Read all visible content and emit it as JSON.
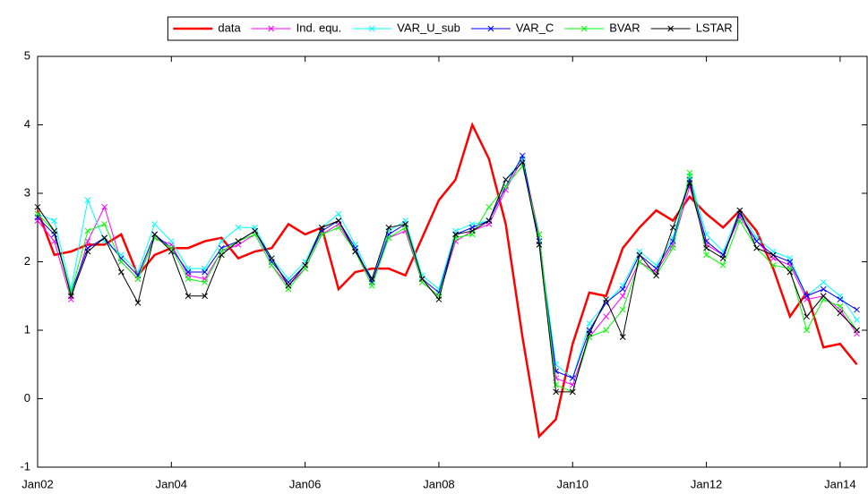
{
  "chart_data": {
    "type": "line",
    "x": [
      0,
      3,
      6,
      9,
      12,
      15,
      18,
      21,
      24,
      27,
      30,
      33,
      36,
      39,
      42,
      45,
      48,
      51,
      54,
      57,
      60,
      63,
      66,
      69,
      72,
      75,
      78,
      81,
      84,
      87,
      90,
      93,
      96,
      99,
      102,
      105,
      108,
      111,
      114,
      117,
      120,
      123,
      126,
      129,
      132,
      135,
      138,
      141,
      144,
      147
    ],
    "xlim": [
      0,
      149
    ],
    "xticks": [
      {
        "value": 0,
        "label": "Jan02"
      },
      {
        "value": 24,
        "label": "Jan04"
      },
      {
        "value": 48,
        "label": "Jan06"
      },
      {
        "value": 72,
        "label": "Jan08"
      },
      {
        "value": 96,
        "label": "Jan10"
      },
      {
        "value": 120,
        "label": "Jan12"
      },
      {
        "value": 144,
        "label": "Jan14"
      }
    ],
    "ylim": [
      -1,
      5
    ],
    "yticks": [
      -1,
      0,
      1,
      2,
      3,
      4,
      5
    ],
    "legend": "top",
    "series": [
      {
        "name": "data",
        "color": "#ff0000",
        "width": 2.5,
        "values": [
          2.75,
          2.1,
          2.15,
          2.25,
          2.25,
          2.4,
          1.8,
          2.1,
          2.2,
          2.2,
          2.3,
          2.35,
          2.05,
          2.15,
          2.2,
          2.55,
          2.4,
          2.5,
          1.6,
          1.85,
          1.9,
          1.9,
          1.8,
          2.35,
          2.9,
          3.2,
          4.0,
          3.5,
          2.55,
          0.9,
          -0.55,
          -0.3,
          0.8,
          1.55,
          1.5,
          2.2,
          2.5,
          2.75,
          2.6,
          2.95,
          2.7,
          2.5,
          2.75,
          2.45,
          1.9,
          1.2,
          1.55,
          0.75,
          0.8,
          0.5
        ]
      },
      {
        "name": "Ind. equ.",
        "color": "#ff00ff",
        "marker": "x",
        "width": 1,
        "values": [
          2.6,
          2.3,
          1.45,
          2.3,
          2.8,
          2.0,
          1.75,
          2.35,
          2.25,
          1.8,
          1.75,
          2.15,
          2.25,
          2.4,
          1.95,
          1.65,
          1.9,
          2.4,
          2.55,
          2.15,
          1.7,
          2.35,
          2.45,
          1.7,
          1.5,
          2.3,
          2.45,
          2.55,
          3.05,
          3.5,
          2.4,
          0.3,
          0.2,
          0.9,
          1.2,
          1.5,
          2.0,
          1.85,
          2.25,
          3.1,
          2.25,
          2.1,
          2.65,
          2.3,
          2.05,
          1.95,
          1.45,
          1.5,
          1.3,
          0.95
        ]
      },
      {
        "name": "VAR_U_sub",
        "color": "#00ffff",
        "marker": "x",
        "width": 1,
        "values": [
          2.7,
          2.6,
          1.6,
          2.9,
          2.3,
          2.1,
          1.85,
          2.55,
          2.3,
          1.9,
          1.9,
          2.3,
          2.5,
          2.5,
          2.05,
          1.75,
          2.0,
          2.5,
          2.7,
          2.25,
          1.75,
          2.45,
          2.6,
          1.8,
          1.6,
          2.45,
          2.55,
          2.6,
          3.2,
          3.5,
          2.3,
          0.5,
          0.3,
          1.1,
          1.4,
          1.65,
          2.15,
          1.95,
          2.35,
          3.25,
          2.4,
          2.15,
          2.75,
          2.35,
          2.15,
          2.05,
          1.5,
          1.7,
          1.5,
          1.15
        ]
      },
      {
        "name": "VAR_C",
        "color": "#0000ff",
        "marker": "x",
        "width": 1,
        "values": [
          2.65,
          2.4,
          1.55,
          2.2,
          2.35,
          2.05,
          1.8,
          2.4,
          2.2,
          1.85,
          1.85,
          2.2,
          2.3,
          2.45,
          2.0,
          1.7,
          1.95,
          2.45,
          2.6,
          2.2,
          1.7,
          2.4,
          2.55,
          1.75,
          1.55,
          2.4,
          2.5,
          2.6,
          3.1,
          3.55,
          2.3,
          0.4,
          0.3,
          1.0,
          1.4,
          1.6,
          2.1,
          1.9,
          2.3,
          3.2,
          2.3,
          2.1,
          2.7,
          2.3,
          2.1,
          2.0,
          1.5,
          1.6,
          1.45,
          1.3
        ]
      },
      {
        "name": "BVAR",
        "color": "#00ff00",
        "marker": "x",
        "width": 1,
        "values": [
          2.7,
          2.45,
          1.55,
          2.45,
          2.55,
          2.0,
          1.75,
          2.35,
          2.2,
          1.75,
          1.7,
          2.15,
          2.3,
          2.4,
          1.95,
          1.6,
          1.9,
          2.4,
          2.5,
          2.15,
          1.65,
          2.35,
          2.5,
          1.7,
          1.5,
          2.35,
          2.4,
          2.8,
          3.1,
          3.4,
          2.4,
          0.2,
          0.1,
          0.9,
          1.0,
          1.3,
          2.0,
          1.8,
          2.2,
          3.3,
          2.1,
          1.95,
          2.6,
          2.2,
          1.95,
          1.9,
          1.0,
          1.45,
          1.35,
          1.0
        ]
      },
      {
        "name": "LSTAR",
        "color": "#000000",
        "marker": "x",
        "width": 1,
        "values": [
          2.8,
          2.45,
          1.5,
          2.15,
          2.35,
          1.85,
          1.4,
          2.4,
          2.15,
          1.5,
          1.5,
          2.1,
          2.3,
          2.45,
          2.05,
          1.65,
          1.95,
          2.5,
          2.6,
          2.15,
          1.75,
          2.5,
          2.55,
          1.75,
          1.45,
          2.4,
          2.45,
          2.6,
          3.2,
          3.45,
          2.25,
          0.1,
          0.1,
          0.95,
          1.45,
          0.9,
          2.1,
          1.8,
          2.5,
          3.15,
          2.2,
          2.05,
          2.75,
          2.2,
          2.1,
          1.85,
          1.2,
          1.5,
          1.25,
          1.0
        ]
      }
    ]
  }
}
